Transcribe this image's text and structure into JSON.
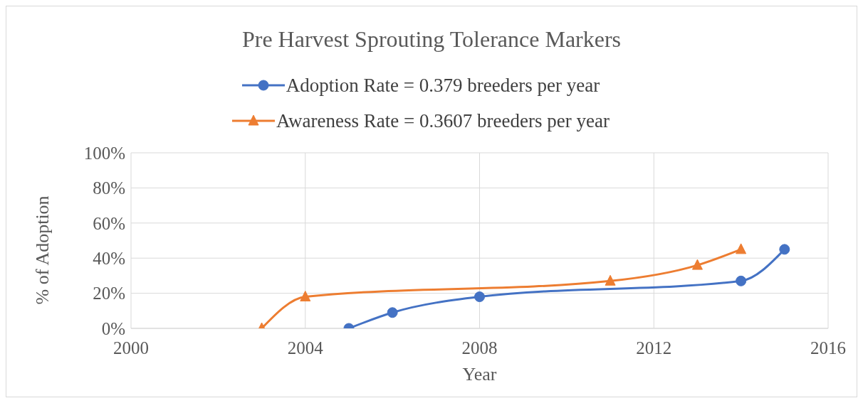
{
  "chart_data": {
    "type": "line",
    "title": "Pre Harvest Sprouting Tolerance Markers",
    "xlabel": "Year",
    "ylabel": "% of Adoption",
    "series": [
      {
        "name": "Adoption Rate = 0.379 breeders per year",
        "color": "#4472c4",
        "marker": "circle",
        "x": [
          2005,
          2006,
          2008,
          2014,
          2015
        ],
        "values": [
          0,
          9,
          18,
          27,
          45
        ]
      },
      {
        "name": "Awareness Rate = 0.3607 breeders per year",
        "color": "#ed7d31",
        "marker": "triangle",
        "x": [
          2003,
          2004,
          2011,
          2013,
          2014
        ],
        "values": [
          0,
          18,
          27,
          36,
          45
        ]
      }
    ],
    "xlim": [
      2000,
      2016
    ],
    "xticks": [
      2000,
      2004,
      2008,
      2012,
      2016
    ],
    "ylim": [
      0,
      100
    ],
    "yticks": [
      {
        "value": 0,
        "label": "0%"
      },
      {
        "value": 20,
        "label": "20%"
      },
      {
        "value": 40,
        "label": "40%"
      },
      {
        "value": 60,
        "label": "60%"
      },
      {
        "value": 80,
        "label": "80%"
      },
      {
        "value": 100,
        "label": "100%"
      }
    ],
    "grid": true,
    "legend": "top"
  }
}
